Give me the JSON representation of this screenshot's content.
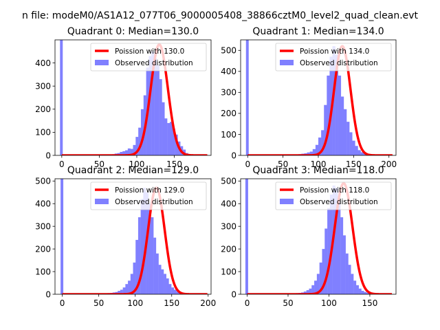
{
  "figure": {
    "suptitle": "n file: modeM0/AS1A12_077T06_9000005408_38866cztM0_level2_quad_clean.evt"
  },
  "chart_data": [
    {
      "type": "bar",
      "title": "Quadrant 0: Median=130.0",
      "xlabel": "",
      "ylabel": "",
      "xlim": [
        -9,
        199
      ],
      "ylim": [
        0,
        500
      ],
      "xticks": [
        0,
        50,
        100,
        150
      ],
      "yticks": [
        0,
        100,
        200,
        300,
        400
      ],
      "legend": "top-right",
      "zero_bin_clipped": true,
      "bins": {
        "start": 60,
        "width": 3.5,
        "counts": [
          2,
          3,
          5,
          8,
          10,
          15,
          18,
          22,
          30,
          28,
          45,
          80,
          120,
          200,
          260,
          380,
          430,
          450,
          420,
          390,
          330,
          230,
          160,
          140,
          145,
          115,
          90,
          60,
          40,
          25,
          10
        ]
      },
      "series": [
        {
          "name": "Poission with 130.0",
          "kind": "poisson-curve",
          "mu": 130.0,
          "peak": 480,
          "color": "#ff0000"
        },
        {
          "name": "Observed distribution",
          "kind": "histogram",
          "color": "#8080ff"
        }
      ]
    },
    {
      "type": "bar",
      "title": "Quadrant 1: Median=134.0",
      "xlabel": "",
      "ylabel": "",
      "xlim": [
        -10,
        210
      ],
      "ylim": [
        0,
        550
      ],
      "xticks": [
        0,
        50,
        100,
        150,
        200
      ],
      "yticks": [
        0,
        100,
        200,
        300,
        400,
        500
      ],
      "legend": "top-right",
      "zero_bin_clipped": true,
      "bins": {
        "start": 60,
        "width": 4,
        "counts": [
          2,
          3,
          4,
          6,
          8,
          10,
          14,
          18,
          30,
          50,
          85,
          120,
          240,
          380,
          470,
          520,
          480,
          380,
          280,
          220,
          160,
          110,
          70,
          45,
          25,
          15,
          10,
          6
        ]
      },
      "series": [
        {
          "name": "Poission with 134.0",
          "kind": "poisson-curve",
          "mu": 134.0,
          "peak": 520,
          "color": "#ff0000"
        },
        {
          "name": "Observed distribution",
          "kind": "histogram",
          "color": "#8080ff"
        }
      ]
    },
    {
      "type": "bar",
      "title": "Quadrant 2: Median=129.0",
      "xlabel": "",
      "ylabel": "",
      "xlim": [
        -10,
        204
      ],
      "ylim": [
        0,
        510
      ],
      "xticks": [
        0,
        50,
        100,
        150,
        200
      ],
      "yticks": [
        0,
        100,
        200,
        300,
        400,
        500
      ],
      "legend": "top-right",
      "zero_bin_clipped": true,
      "bins": {
        "start": 55,
        "width": 3.5,
        "counts": [
          3,
          4,
          5,
          6,
          8,
          10,
          15,
          20,
          30,
          45,
          60,
          90,
          140,
          240,
          340,
          420,
          470,
          450,
          400,
          340,
          250,
          180,
          130,
          110,
          90,
          70,
          45,
          30,
          20,
          12,
          8,
          5,
          4,
          3,
          3,
          2,
          2,
          1,
          1,
          1
        ]
      },
      "series": [
        {
          "name": "Poission with 129.0",
          "kind": "poisson-curve",
          "mu": 129.0,
          "peak": 470,
          "color": "#ff0000"
        },
        {
          "name": "Observed distribution",
          "kind": "histogram",
          "color": "#8080ff"
        }
      ]
    },
    {
      "type": "bar",
      "title": "Quadrant 3: Median=118.0",
      "xlabel": "",
      "ylabel": "",
      "xlim": [
        -8,
        182
      ],
      "ylim": [
        0,
        510
      ],
      "xticks": [
        0,
        50,
        100,
        150
      ],
      "yticks": [
        0,
        100,
        200,
        300,
        400,
        500
      ],
      "legend": "top-right",
      "zero_bin_clipped": true,
      "bins": {
        "start": 50,
        "width": 3.2,
        "counts": [
          2,
          3,
          4,
          5,
          6,
          8,
          12,
          18,
          25,
          40,
          60,
          90,
          140,
          200,
          290,
          380,
          440,
          480,
          470,
          410,
          340,
          260,
          180,
          130,
          90,
          60,
          40,
          25,
          15,
          10,
          6,
          4,
          3,
          2,
          2,
          1,
          1,
          1,
          1
        ]
      },
      "series": [
        {
          "name": "Poission with 118.0",
          "kind": "poisson-curve",
          "mu": 118.0,
          "peak": 490,
          "color": "#ff0000"
        },
        {
          "name": "Observed distribution",
          "kind": "histogram",
          "color": "#8080ff"
        }
      ]
    }
  ]
}
